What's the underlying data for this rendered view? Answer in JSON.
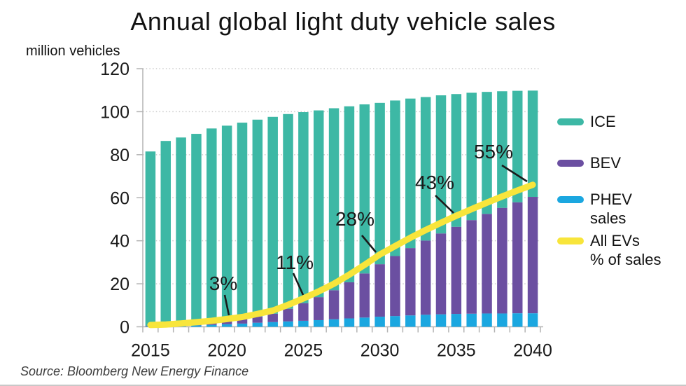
{
  "title": "Annual global light duty vehicle sales",
  "y_axis_unit": "million vehicles",
  "source": "Source: Bloomberg New Energy Finance",
  "colors": {
    "ice": "#3DB8A5",
    "bev": "#6B4FA1",
    "phev": "#1BA7E0",
    "ev_line": "#F8E53B",
    "grid": "#cccccc",
    "axis": "#b3b3b3",
    "text": "#1a1a1a"
  },
  "legend": {
    "items": [
      {
        "label": "ICE",
        "color_key": "ice"
      },
      {
        "label": "BEV",
        "color_key": "bev"
      },
      {
        "label": "PHEV\nsales",
        "color_key": "phev"
      },
      {
        "label": "All EVs\n% of sales",
        "color_key": "ev_line"
      }
    ]
  },
  "chart_data": {
    "type": "bar",
    "stacked": true,
    "title": "Annual global light duty vehicle sales",
    "xlabel": "",
    "ylabel": "million vehicles",
    "ylim": [
      0,
      120
    ],
    "y_ticks": [
      0,
      20,
      40,
      60,
      80,
      100,
      120
    ],
    "x_labeled_ticks": [
      2015,
      2020,
      2025,
      2030,
      2035,
      2040
    ],
    "grid": "dotted-horizontal",
    "legend_position": "right",
    "years": [
      2015,
      2016,
      2017,
      2018,
      2019,
      2020,
      2021,
      2022,
      2023,
      2024,
      2025,
      2026,
      2027,
      2028,
      2029,
      2030,
      2031,
      2032,
      2033,
      2034,
      2035,
      2036,
      2037,
      2038,
      2039,
      2040
    ],
    "series": [
      {
        "name": "PHEV sales",
        "color_key": "phev",
        "values": [
          0.3,
          0.4,
          0.5,
          0.7,
          0.9,
          1.2,
          1.5,
          1.9,
          2.2,
          2.5,
          2.8,
          3.1,
          3.5,
          3.9,
          4.3,
          4.7,
          5.0,
          5.3,
          5.6,
          5.8,
          6.0,
          6.1,
          6.2,
          6.2,
          6.3,
          6.3
        ]
      },
      {
        "name": "BEV",
        "color_key": "bev",
        "values": [
          0.3,
          0.4,
          0.6,
          0.9,
          1.2,
          1.6,
          2.1,
          2.9,
          3.9,
          5.9,
          8.2,
          10.7,
          13.5,
          16.8,
          20.5,
          24.4,
          27.9,
          31.3,
          34.5,
          37.6,
          40.5,
          43.5,
          46.3,
          49.1,
          51.6,
          54.1
        ]
      },
      {
        "name": "ICE",
        "color_key": "ice",
        "values": [
          80.9,
          85.6,
          86.9,
          88.1,
          90.1,
          90.7,
          91.3,
          91.5,
          91.5,
          90.5,
          88.8,
          86.8,
          84.6,
          81.8,
          78.6,
          75.0,
          72.3,
          69.5,
          66.7,
          64.2,
          61.7,
          59.2,
          56.7,
          54.2,
          51.8,
          49.4
        ]
      }
    ],
    "line_series": {
      "name": "All EVs % of sales",
      "unit": "percent",
      "color_key": "ev_line",
      "note": "percent plotted against 0-120 axis as pct*1.2",
      "values": [
        0.7,
        0.9,
        1.3,
        1.8,
        2.3,
        3.0,
        3.8,
        5.0,
        6.3,
        8.5,
        11.0,
        13.7,
        16.7,
        20.2,
        24.0,
        28.0,
        31.3,
        34.5,
        37.5,
        40.3,
        43.0,
        45.6,
        48.1,
        50.5,
        52.8,
        55.0
      ]
    },
    "annotations": [
      {
        "label": "3%",
        "year": 2020
      },
      {
        "label": "11%",
        "year": 2025
      },
      {
        "label": "28%",
        "year": 2030
      },
      {
        "label": "43%",
        "year": 2035
      },
      {
        "label": "55%",
        "year": 2040
      }
    ]
  }
}
